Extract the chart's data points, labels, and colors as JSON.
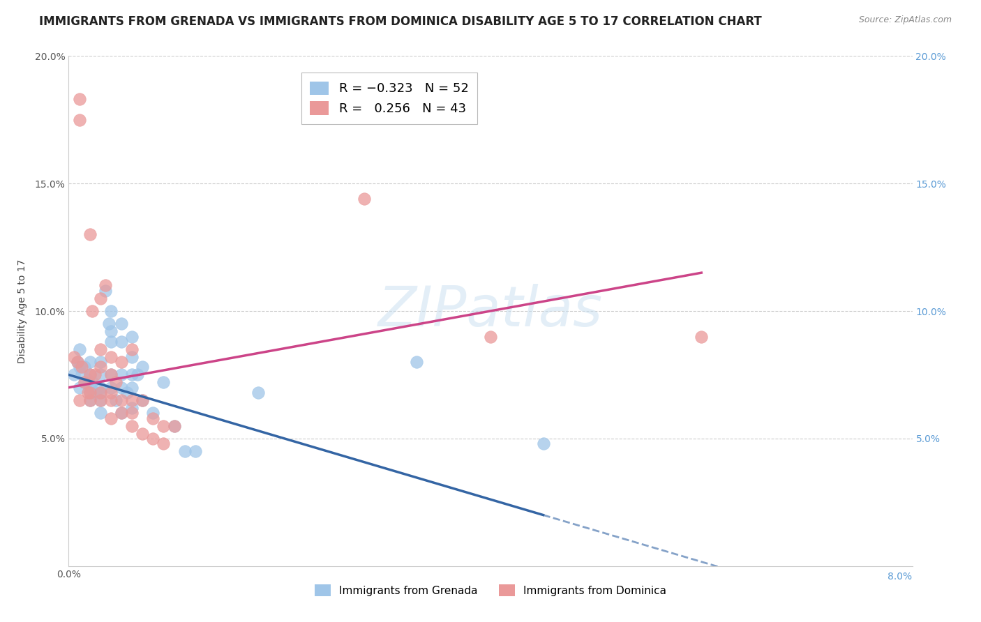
{
  "title": "IMMIGRANTS FROM GRENADA VS IMMIGRANTS FROM DOMINICA DISABILITY AGE 5 TO 17 CORRELATION CHART",
  "source": "Source: ZipAtlas.com",
  "ylabel": "Disability Age 5 to 17",
  "xlim": [
    0.0,
    0.08
  ],
  "ylim": [
    0.0,
    0.2
  ],
  "xticks": [
    0.0,
    0.01,
    0.02,
    0.03,
    0.04,
    0.05,
    0.06,
    0.07,
    0.08
  ],
  "yticks": [
    0.0,
    0.05,
    0.1,
    0.15,
    0.2
  ],
  "grenada_color": "#9fc5e8",
  "dominica_color": "#ea9999",
  "grenada_line_color": "#3465a4",
  "dominica_line_color": "#cc4488",
  "grenada_R": -0.323,
  "grenada_N": 52,
  "dominica_R": 0.256,
  "dominica_N": 43,
  "watermark": "ZIPatlas",
  "background_color": "#ffffff",
  "grid_color": "#cccccc",
  "title_fontsize": 12,
  "axis_label_fontsize": 10,
  "tick_fontsize": 10,
  "grenada_x": [
    0.0005,
    0.0008,
    0.001,
    0.001,
    0.001,
    0.0012,
    0.0015,
    0.0015,
    0.0018,
    0.002,
    0.002,
    0.002,
    0.002,
    0.002,
    0.0022,
    0.0025,
    0.003,
    0.003,
    0.003,
    0.003,
    0.003,
    0.003,
    0.0035,
    0.0038,
    0.004,
    0.004,
    0.004,
    0.004,
    0.004,
    0.0045,
    0.005,
    0.005,
    0.005,
    0.005,
    0.005,
    0.0055,
    0.006,
    0.006,
    0.006,
    0.006,
    0.006,
    0.0065,
    0.007,
    0.007,
    0.008,
    0.009,
    0.01,
    0.011,
    0.012,
    0.018,
    0.033,
    0.045
  ],
  "grenada_y": [
    0.075,
    0.08,
    0.07,
    0.085,
    0.078,
    0.075,
    0.072,
    0.078,
    0.073,
    0.07,
    0.075,
    0.08,
    0.065,
    0.068,
    0.072,
    0.068,
    0.08,
    0.075,
    0.07,
    0.065,
    0.06,
    0.068,
    0.108,
    0.095,
    0.1,
    0.092,
    0.088,
    0.075,
    0.07,
    0.065,
    0.095,
    0.088,
    0.075,
    0.07,
    0.06,
    0.068,
    0.09,
    0.082,
    0.075,
    0.07,
    0.062,
    0.075,
    0.078,
    0.065,
    0.06,
    0.072,
    0.055,
    0.045,
    0.045,
    0.068,
    0.08,
    0.048
  ],
  "dominica_x": [
    0.0005,
    0.0008,
    0.001,
    0.001,
    0.001,
    0.0012,
    0.0015,
    0.0018,
    0.002,
    0.002,
    0.002,
    0.002,
    0.0022,
    0.0025,
    0.003,
    0.003,
    0.003,
    0.003,
    0.003,
    0.0035,
    0.004,
    0.004,
    0.004,
    0.004,
    0.004,
    0.0045,
    0.005,
    0.005,
    0.005,
    0.006,
    0.006,
    0.006,
    0.006,
    0.007,
    0.007,
    0.008,
    0.008,
    0.009,
    0.009,
    0.01,
    0.028,
    0.04,
    0.06
  ],
  "dominica_y": [
    0.082,
    0.08,
    0.065,
    0.175,
    0.183,
    0.078,
    0.072,
    0.068,
    0.065,
    0.13,
    0.075,
    0.068,
    0.1,
    0.075,
    0.105,
    0.085,
    0.078,
    0.068,
    0.065,
    0.11,
    0.082,
    0.075,
    0.068,
    0.065,
    0.058,
    0.072,
    0.08,
    0.065,
    0.06,
    0.085,
    0.065,
    0.06,
    0.055,
    0.065,
    0.052,
    0.058,
    0.05,
    0.055,
    0.048,
    0.055,
    0.144,
    0.09,
    0.09
  ]
}
